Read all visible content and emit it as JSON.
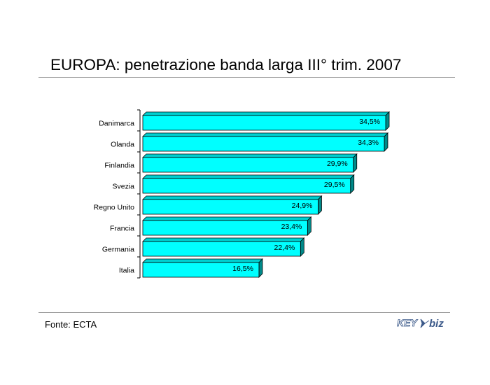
{
  "title": "EUROPA: penetrazione banda larga III° trim. 2007",
  "source": "Fonte: ECTA",
  "logo": {
    "text_key": "KEY",
    "text_biz": "biz",
    "color": "#3c5a8a"
  },
  "colors": {
    "bar_front": "#00ffff",
    "bar_top": "#00d0d0",
    "bar_side": "#008a8a",
    "bar_edge": "#000000"
  },
  "chart_data": {
    "type": "bar",
    "orientation": "horizontal",
    "3d": true,
    "categories": [
      "Danimarca",
      "Olanda",
      "Finlandia",
      "Svezia",
      "Regno Unito",
      "Francia",
      "Germania",
      "Italia"
    ],
    "values": [
      34.5,
      34.3,
      29.9,
      29.5,
      24.9,
      23.4,
      22.4,
      16.5
    ],
    "labels": [
      "34,5%",
      "34,3%",
      "29,9%",
      "29,5%",
      "24,9%",
      "23,4%",
      "22,4%",
      "16,5%"
    ],
    "unit": "%",
    "xlim": [
      0,
      35
    ],
    "grid": false,
    "legend": "none"
  }
}
